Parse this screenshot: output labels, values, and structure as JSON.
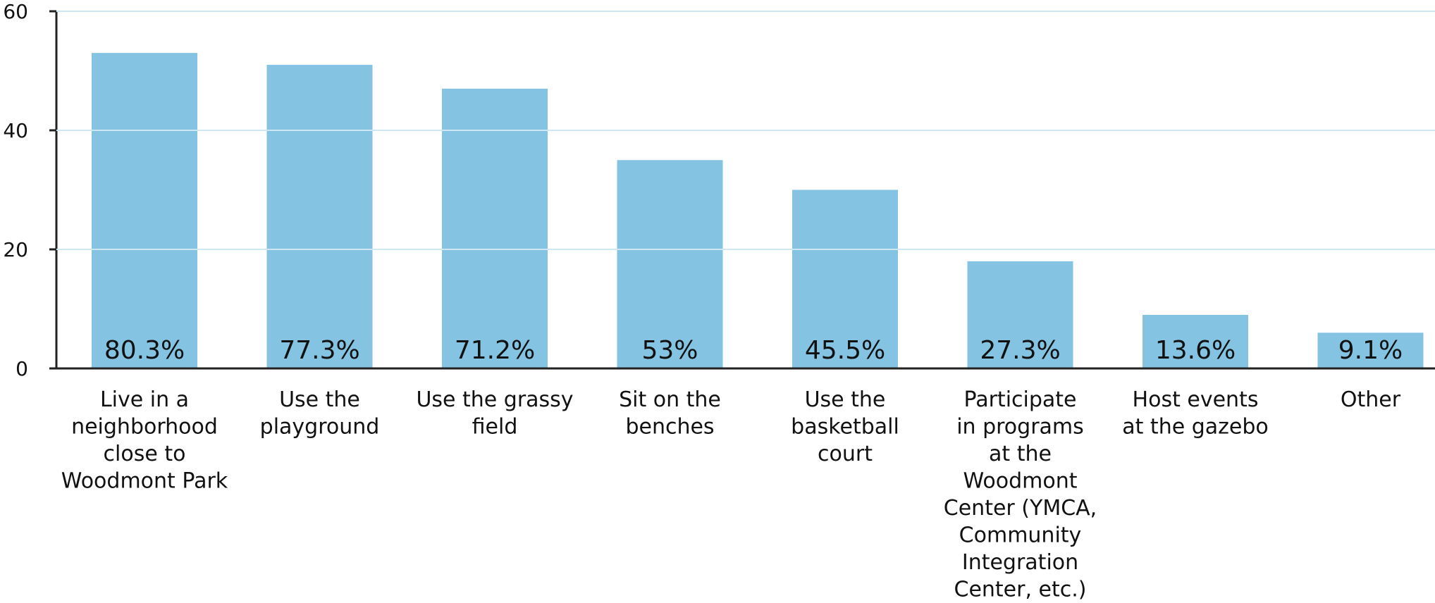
{
  "chart_data": {
    "type": "bar",
    "title": "",
    "xlabel": "",
    "ylabel": "",
    "ylim": [
      0,
      60
    ],
    "yticks": [
      0,
      20,
      40,
      60
    ],
    "grid": true,
    "bar_color": "#85C3E3",
    "categories": [
      "Live in a neighborhood close to Woodmont Park",
      "Use the playground",
      "Use the grassy field",
      "Sit on the benches",
      "Use the basketball court",
      "Participate in programs at the Woodmont Center (YMCA, Community Integration Center, etc.)",
      "Host events at the gazebo",
      "Other"
    ],
    "category_lines": [
      [
        "Live in a",
        "neighborhood",
        "close to",
        "Woodmont Park"
      ],
      [
        "Use the",
        "playground"
      ],
      [
        "Use the grassy",
        "field"
      ],
      [
        "Sit on the",
        "benches"
      ],
      [
        "Use the",
        "basketball",
        "court"
      ],
      [
        "Participate",
        "in programs",
        "at the",
        "Woodmont",
        "Center (YMCA,",
        "Community",
        "Integration",
        "Center, etc.)"
      ],
      [
        "Host events",
        "at the gazebo"
      ],
      [
        "Other"
      ]
    ],
    "values": [
      53,
      51,
      47,
      35,
      30,
      18,
      9,
      6
    ],
    "data_labels": [
      "80.3%",
      "77.3%",
      "71.2%",
      "53%",
      "45.5%",
      "27.3%",
      "13.6%",
      "9.1%"
    ]
  }
}
